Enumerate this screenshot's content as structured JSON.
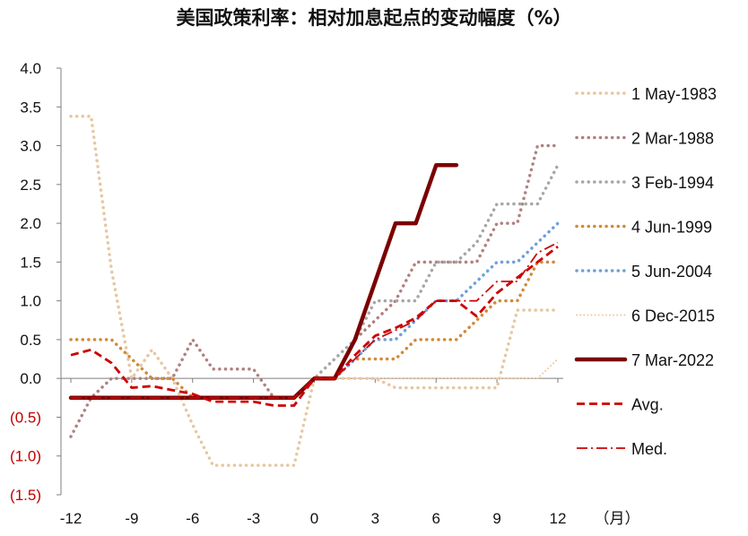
{
  "chart_data": {
    "type": "line",
    "title": "美国政策利率：相对加息起点的变动幅度（%）",
    "xlabel": "（月）",
    "xlim": [
      -12,
      12
    ],
    "ylim": [
      -1.5,
      4.0
    ],
    "x_ticks": [
      -12,
      -9,
      -6,
      -3,
      0,
      3,
      6,
      9,
      12
    ],
    "y_ticks": [
      "4.0",
      "3.5",
      "3.0",
      "2.5",
      "2.0",
      "1.5",
      "1.0",
      "0.5",
      "0.0",
      "(0.5)",
      "(1.0)",
      "(1.5)"
    ],
    "y_tick_values": [
      4.0,
      3.5,
      3.0,
      2.5,
      2.0,
      1.5,
      1.0,
      0.5,
      0.0,
      -0.5,
      -1.0,
      -1.5
    ],
    "negative_tick_color": "#c00000",
    "legend_position": "right",
    "series": [
      {
        "name": "1 May-1983",
        "color": "#e6c7a1",
        "style": "dotted",
        "x": [
          -12,
          -11,
          -10,
          -9,
          -8,
          -7,
          -6,
          -5,
          -4,
          -3,
          -2,
          -1,
          0,
          1,
          2,
          3,
          4,
          5,
          6,
          7,
          8,
          9,
          10,
          11,
          12
        ],
        "y": [
          3.38,
          3.38,
          1.4,
          0.0,
          0.37,
          0.0,
          -0.6,
          -1.12,
          -1.12,
          -1.12,
          -1.12,
          -1.12,
          0.0,
          0.0,
          0.0,
          0.0,
          -0.12,
          -0.12,
          -0.12,
          -0.12,
          -0.12,
          -0.12,
          0.88,
          0.88,
          0.88
        ]
      },
      {
        "name": "2 Mar-1988",
        "color": "#b08080",
        "style": "dotted",
        "x": [
          -12,
          -11,
          -10,
          -9,
          -8,
          -7,
          -6,
          -5,
          -4,
          -3,
          -2,
          -1,
          0,
          1,
          2,
          3,
          4,
          5,
          6,
          7,
          8,
          9,
          10,
          11,
          12
        ],
        "y": [
          -0.75,
          -0.25,
          0.0,
          0.0,
          0.0,
          0.0,
          0.5,
          0.12,
          0.12,
          0.12,
          -0.25,
          -0.25,
          0.0,
          0.0,
          0.5,
          0.75,
          1.0,
          1.5,
          1.5,
          1.5,
          1.5,
          2.0,
          2.0,
          3.0,
          3.0
        ]
      },
      {
        "name": "3 Feb-1994",
        "color": "#a6a6a6",
        "style": "dotted",
        "x": [
          -12,
          -11,
          -10,
          -9,
          -8,
          -7,
          -6,
          -5,
          -4,
          -3,
          -2,
          -1,
          0,
          1,
          2,
          3,
          4,
          5,
          6,
          7,
          8,
          9,
          10,
          11,
          12
        ],
        "y": [
          -0.25,
          -0.25,
          -0.25,
          -0.25,
          -0.25,
          -0.25,
          -0.25,
          -0.25,
          -0.25,
          -0.25,
          -0.25,
          -0.25,
          0.0,
          0.25,
          0.5,
          1.0,
          1.0,
          1.0,
          1.5,
          1.5,
          1.75,
          2.25,
          2.25,
          2.25,
          2.75
        ]
      },
      {
        "name": "4 Jun-1999",
        "color": "#d08a3a",
        "style": "dotted",
        "x": [
          -12,
          -11,
          -10,
          -9,
          -8,
          -7,
          -6,
          -5,
          -4,
          -3,
          -2,
          -1,
          0,
          1,
          2,
          3,
          4,
          5,
          6,
          7,
          8,
          9,
          10,
          11,
          12
        ],
        "y": [
          0.5,
          0.5,
          0.5,
          0.25,
          0.0,
          0.0,
          -0.25,
          -0.25,
          -0.25,
          -0.25,
          -0.25,
          -0.25,
          0.0,
          0.0,
          0.25,
          0.25,
          0.25,
          0.5,
          0.5,
          0.5,
          0.75,
          1.0,
          1.0,
          1.5,
          1.5
        ]
      },
      {
        "name": "5 Jun-2004",
        "color": "#6f9fd8",
        "style": "dotted",
        "x": [
          -12,
          -11,
          -10,
          -9,
          -8,
          -7,
          -6,
          -5,
          -4,
          -3,
          -2,
          -1,
          0,
          1,
          2,
          3,
          4,
          5,
          6,
          7,
          8,
          9,
          10,
          11,
          12
        ],
        "y": [
          -0.25,
          -0.25,
          -0.25,
          -0.25,
          -0.25,
          -0.25,
          -0.25,
          -0.25,
          -0.25,
          -0.25,
          -0.25,
          -0.25,
          0.0,
          0.0,
          0.25,
          0.5,
          0.5,
          0.75,
          1.0,
          1.0,
          1.25,
          1.5,
          1.5,
          1.75,
          2.0
        ]
      },
      {
        "name": "6 Dec-2015",
        "color": "#f0c8a0",
        "style": "fine-dotted",
        "x": [
          -12,
          -11,
          -10,
          -9,
          -8,
          -7,
          -6,
          -5,
          -4,
          -3,
          -2,
          -1,
          0,
          1,
          2,
          3,
          4,
          5,
          6,
          7,
          8,
          9,
          10,
          11,
          12
        ],
        "y": [
          -0.25,
          -0.25,
          -0.25,
          -0.25,
          -0.25,
          -0.25,
          -0.25,
          -0.25,
          -0.25,
          -0.25,
          -0.25,
          -0.25,
          0.0,
          0.0,
          0.0,
          0.0,
          0.0,
          0.0,
          0.0,
          0.0,
          0.0,
          0.0,
          0.0,
          0.0,
          0.25
        ]
      },
      {
        "name": "7 Mar-2022",
        "color": "#7b0000",
        "style": "solid",
        "x": [
          -12,
          -11,
          -10,
          -9,
          -8,
          -7,
          -6,
          -5,
          -4,
          -3,
          -2,
          -1,
          0,
          1,
          2,
          3,
          4,
          5,
          6,
          7
        ],
        "y": [
          -0.25,
          -0.25,
          -0.25,
          -0.25,
          -0.25,
          -0.25,
          -0.25,
          -0.25,
          -0.25,
          -0.25,
          -0.25,
          -0.25,
          0.0,
          0.0,
          0.5,
          1.25,
          2.0,
          2.0,
          2.75,
          2.75
        ]
      },
      {
        "name": "Avg.",
        "color": "#cc0000",
        "style": "dashed",
        "x": [
          -12,
          -11,
          -10,
          -9,
          -8,
          -7,
          -6,
          -5,
          -4,
          -3,
          -2,
          -1,
          0,
          1,
          2,
          3,
          4,
          5,
          6,
          7,
          8,
          9,
          10,
          11,
          12
        ],
        "y": [
          0.3,
          0.37,
          0.2,
          -0.12,
          -0.1,
          -0.15,
          -0.2,
          -0.3,
          -0.3,
          -0.3,
          -0.35,
          -0.35,
          0.0,
          0.0,
          0.3,
          0.55,
          0.65,
          0.78,
          1.0,
          1.0,
          0.8,
          1.1,
          1.3,
          1.5,
          1.7
        ]
      },
      {
        "name": "Med.",
        "color": "#cc0000",
        "style": "dash-dot",
        "x": [
          -12,
          -11,
          -10,
          -9,
          -8,
          -7,
          -6,
          -5,
          -4,
          -3,
          -2,
          -1,
          0,
          1,
          2,
          3,
          4,
          5,
          6,
          7,
          8,
          9,
          10,
          11,
          12
        ],
        "y": [
          -0.25,
          -0.25,
          -0.25,
          -0.25,
          -0.25,
          -0.25,
          -0.25,
          -0.25,
          -0.25,
          -0.25,
          -0.25,
          -0.25,
          0.0,
          0.0,
          0.25,
          0.5,
          0.62,
          0.75,
          1.0,
          1.0,
          1.0,
          1.25,
          1.25,
          1.62,
          1.75
        ]
      }
    ]
  }
}
